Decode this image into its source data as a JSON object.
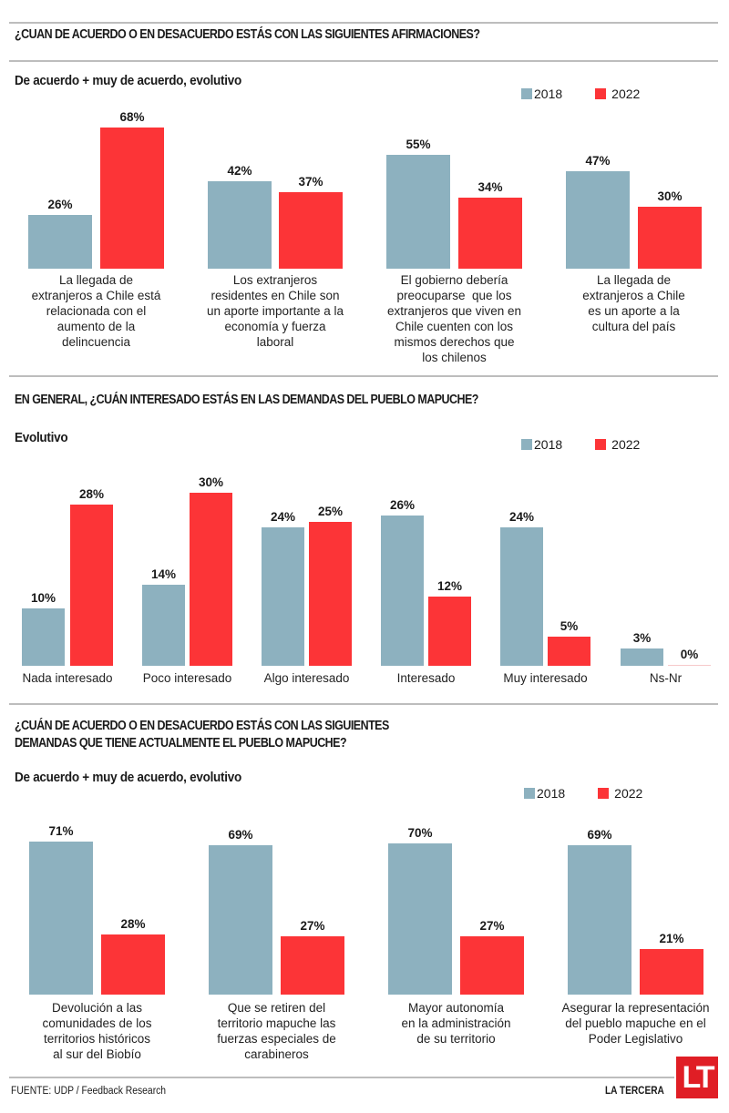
{
  "colors": {
    "y2018": "#8db1bf",
    "y2022": "#fc3437",
    "rule": "#bdbdbd",
    "brand": "#e01e25"
  },
  "legend": {
    "y2018": "2018",
    "y2022": "2022"
  },
  "footer": {
    "source": "FUENTE: UDP / Feedback Research",
    "brand": "LA TERCERA",
    "logo": "LT"
  },
  "chart_data": [
    {
      "type": "bar",
      "title": "¿CUAN DE ACUERDO O EN DESACUERDO ESTÁS CON LAS SIGUIENTES AFIRMACIONES?",
      "subtitle": "De acuerdo + muy de acuerdo, evolutivo",
      "legend_position": "top-right",
      "xlabel": "",
      "ylabel": "",
      "ylim": [
        0,
        100
      ],
      "grid": false,
      "categories": [
        "La llegada de extranjeros a Chile está relacionada con el aumento de la delincuencia",
        "Los extranjeros residentes en Chile son un aporte importante a la economía y fuerza laboral",
        "El gobierno debería preocuparse  que los extranjeros que viven en Chile cuenten con los mismos derechos que los chilenos",
        "La llegada de extranjeros a Chile es un aporte a la cultura del país"
      ],
      "category_lines": [
        [
          "La llegada de",
          "extranjeros a Chile está",
          "relacionada con el",
          "aumento de la",
          "delincuencia"
        ],
        [
          "Los extranjeros",
          "residentes en Chile son",
          "un aporte importante a la",
          "economía y fuerza",
          "laboral"
        ],
        [
          "El gobierno debería",
          "preocuparse  que los",
          "extranjeros que viven en",
          "Chile cuenten con los",
          "mismos derechos que",
          "los chilenos"
        ],
        [
          "La llegada de",
          "extranjeros a Chile",
          "es un aporte a la",
          "cultura del país"
        ]
      ],
      "series": [
        {
          "name": "2018",
          "values": [
            26,
            42,
            55,
            47
          ],
          "labels": [
            "26%",
            "42%",
            "55%",
            "47%"
          ]
        },
        {
          "name": "2022",
          "values": [
            68,
            37,
            34,
            30
          ],
          "labels": [
            "68%",
            "37%",
            "34%",
            "30%"
          ]
        }
      ]
    },
    {
      "type": "bar",
      "title": "EN GENERAL, ¿CUÁN INTERESADO ESTÁS EN LAS DEMANDAS DEL PUEBLO MAPUCHE?",
      "subtitle": "Evolutivo",
      "legend_position": "top-right",
      "xlabel": "",
      "ylabel": "",
      "ylim": [
        0,
        100
      ],
      "grid": false,
      "categories": [
        "Nada interesado",
        "Poco interesado",
        "Algo interesado",
        "Interesado",
        "Muy interesado",
        "Ns-Nr"
      ],
      "category_lines": [
        [
          "Nada interesado"
        ],
        [
          "Poco interesado"
        ],
        [
          "Algo interesado"
        ],
        [
          "Interesado"
        ],
        [
          "Muy interesado"
        ],
        [
          "Ns-Nr"
        ]
      ],
      "series": [
        {
          "name": "2018",
          "values": [
            10,
            14,
            24,
            26,
            24,
            3
          ],
          "labels": [
            "10%",
            "14%",
            "24%",
            "26%",
            "24%",
            "3%"
          ]
        },
        {
          "name": "2022",
          "values": [
            28,
            30,
            25,
            12,
            5,
            0
          ],
          "labels": [
            "28%",
            "30%",
            "25%",
            "12%",
            "5%",
            "0%"
          ]
        }
      ]
    },
    {
      "type": "bar",
      "title": "¿CUÁN DE ACUERDO O EN DESACUERDO ESTÁS CON LAS SIGUIENTES DEMANDAS QUE TIENE ACTUALMENTE EL PUEBLO MAPUCHE?",
      "title_lines": [
        "¿CUÁN DE ACUERDO O EN DESACUERDO ESTÁS CON LAS SIGUIENTES",
        "DEMANDAS QUE TIENE ACTUALMENTE EL PUEBLO MAPUCHE?"
      ],
      "subtitle": "De acuerdo + muy de acuerdo, evolutivo",
      "legend_position": "top-right",
      "xlabel": "",
      "ylabel": "",
      "ylim": [
        0,
        100
      ],
      "grid": false,
      "categories": [
        "Devolución a las comunidades de los territorios históricos al sur del Biobío",
        "Que se retiren del territorio mapuche las fuerzas especiales de carabineros",
        "Mayor autonomía en la administración de su territorio",
        "Asegurar la representación del pueblo mapuche en el Poder Legislativo"
      ],
      "category_lines": [
        [
          "Devolución a las",
          "comunidades de los",
          "territorios históricos",
          "al sur del Biobío"
        ],
        [
          "Que se retiren del",
          "territorio mapuche las",
          "fuerzas especiales de",
          "carabineros"
        ],
        [
          "Mayor autonomía",
          "en la administración",
          "de su territorio"
        ],
        [
          "Asegurar la representación",
          "del pueblo mapuche en el",
          "Poder Legislativo"
        ]
      ],
      "series": [
        {
          "name": "2018",
          "values": [
            71,
            69,
            70,
            69
          ],
          "labels": [
            "71%",
            "69%",
            "70%",
            "69%"
          ]
        },
        {
          "name": "2022",
          "values": [
            28,
            27,
            27,
            21
          ],
          "labels": [
            "28%",
            "27%",
            "27%",
            "21%"
          ]
        }
      ]
    }
  ]
}
